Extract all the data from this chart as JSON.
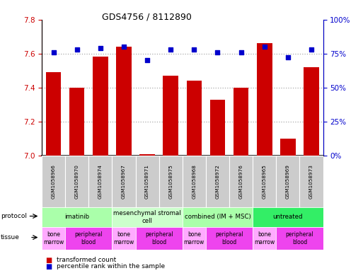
{
  "title": "GDS4756 / 8112890",
  "samples": [
    "GSM1058966",
    "GSM1058970",
    "GSM1058974",
    "GSM1058967",
    "GSM1058971",
    "GSM1058975",
    "GSM1058968",
    "GSM1058972",
    "GSM1058976",
    "GSM1058965",
    "GSM1058969",
    "GSM1058973"
  ],
  "bar_values": [
    7.49,
    7.4,
    7.58,
    7.64,
    7.01,
    7.47,
    7.44,
    7.33,
    7.4,
    7.66,
    7.1,
    7.52
  ],
  "dot_values": [
    76,
    78,
    79,
    80,
    70,
    78,
    78,
    76,
    76,
    80,
    72,
    78
  ],
  "ylim_left": [
    7.0,
    7.8
  ],
  "ylim_right": [
    0,
    100
  ],
  "yticks_left": [
    7.0,
    7.2,
    7.4,
    7.6,
    7.8
  ],
  "yticks_right": [
    0,
    25,
    50,
    75,
    100
  ],
  "bar_color": "#cc0000",
  "dot_color": "#0000cc",
  "grid_color": "#aaaaaa",
  "protocol_groups": [
    {
      "label": "imatinib",
      "start": 0,
      "end": 3,
      "color": "#aaffaa"
    },
    {
      "label": "mesenchymal stromal\ncell",
      "start": 3,
      "end": 6,
      "color": "#ccffcc"
    },
    {
      "label": "combined (IM + MSC)",
      "start": 6,
      "end": 9,
      "color": "#aaffaa"
    },
    {
      "label": "untreated",
      "start": 9,
      "end": 12,
      "color": "#33ee66"
    }
  ],
  "tissue_groups": [
    {
      "label": "bone\nmarrow",
      "start": 0,
      "end": 1,
      "color": "#ffaaff"
    },
    {
      "label": "peripheral\nblood",
      "start": 1,
      "end": 3,
      "color": "#ee44ee"
    },
    {
      "label": "bone\nmarrow",
      "start": 3,
      "end": 4,
      "color": "#ffaaff"
    },
    {
      "label": "peripheral\nblood",
      "start": 4,
      "end": 6,
      "color": "#ee44ee"
    },
    {
      "label": "bone\nmarrow",
      "start": 6,
      "end": 7,
      "color": "#ffaaff"
    },
    {
      "label": "peripheral\nblood",
      "start": 7,
      "end": 9,
      "color": "#ee44ee"
    },
    {
      "label": "bone\nmarrow",
      "start": 9,
      "end": 10,
      "color": "#ffaaff"
    },
    {
      "label": "peripheral\nblood",
      "start": 10,
      "end": 12,
      "color": "#ee44ee"
    }
  ],
  "legend_items": [
    {
      "label": "transformed count",
      "color": "#cc0000"
    },
    {
      "label": "percentile rank within the sample",
      "color": "#0000cc"
    }
  ],
  "sample_box_color": "#cccccc",
  "fig_bg": "#ffffff"
}
